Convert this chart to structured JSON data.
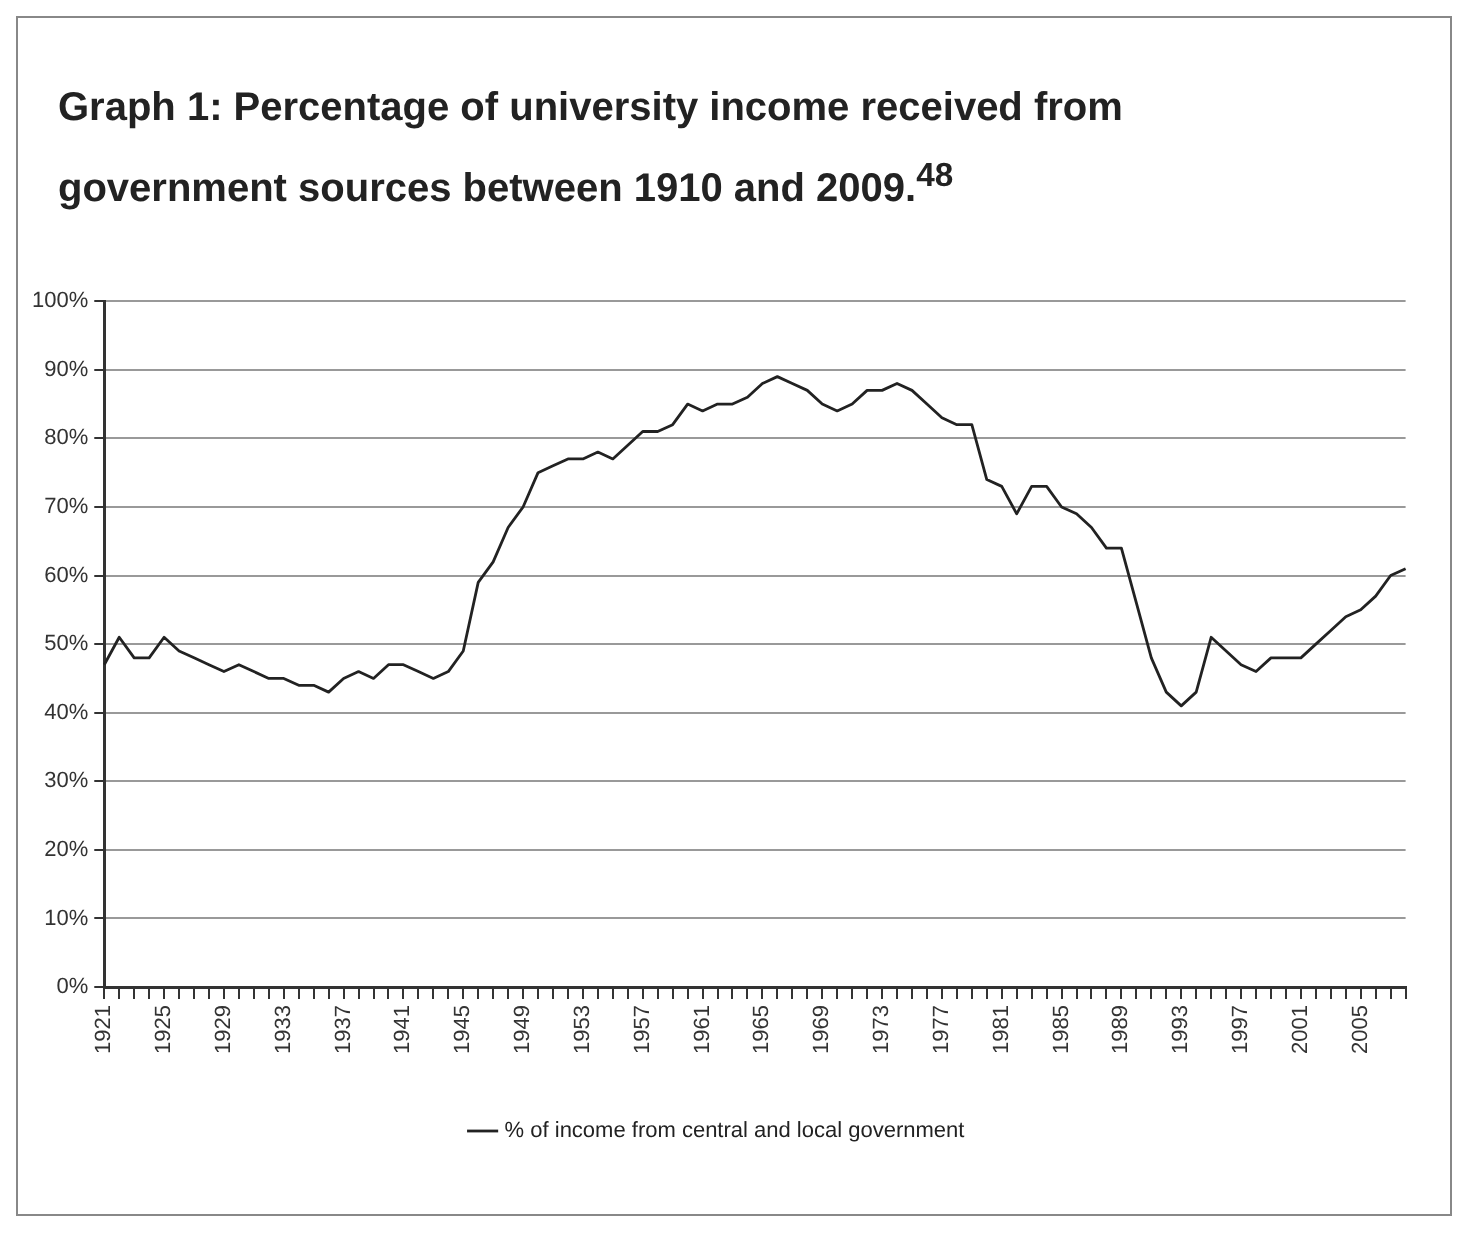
{
  "chart_data": {
    "type": "line",
    "title": "Graph 1: Percentage of university income received from government sources between 1910 and 2009.$^{48}$",
    "categories": [
      "1921",
      null,
      null,
      null,
      "1925",
      null,
      null,
      null,
      "1929",
      null,
      null,
      null,
      "1933",
      null,
      null,
      null,
      "1937",
      null,
      null,
      null,
      "1941",
      null,
      null,
      null,
      "1945",
      null,
      null,
      null,
      "1949",
      null,
      null,
      null,
      "1953",
      null,
      null,
      null,
      "1957",
      null,
      null,
      null,
      "1961",
      null,
      null,
      null,
      "1965",
      null,
      null,
      null,
      "1969",
      null,
      null,
      null,
      "1973",
      null,
      null,
      null,
      "1977",
      null,
      null,
      null,
      "1981",
      null,
      null,
      null,
      "1985",
      null,
      null,
      null,
      "1989",
      null,
      null,
      null,
      "1993",
      null,
      null,
      null,
      "1997",
      null,
      null,
      null,
      "2001",
      null,
      null,
      null,
      "2005",
      null,
      null,
      null
    ],
    "series": [
      {
        "name": "% of income from central and local government",
        "color": "#222222",
        "values": [
          47,
          51,
          48,
          48,
          51,
          49,
          48,
          47,
          46,
          47,
          46,
          45,
          45,
          44,
          44,
          43,
          45,
          46,
          45,
          47,
          47,
          46,
          45,
          46,
          49,
          59,
          62,
          67,
          70,
          75,
          76,
          77,
          77,
          78,
          77,
          79,
          81,
          81,
          82,
          85,
          84,
          85,
          85,
          86,
          88,
          89,
          88,
          87,
          85,
          84,
          85,
          87,
          87,
          88,
          87,
          85,
          83,
          82,
          82,
          74,
          73,
          69,
          73,
          73,
          70,
          69,
          67,
          64,
          64,
          56,
          48,
          43,
          41,
          43,
          51,
          49,
          47,
          46,
          48,
          48,
          48,
          50,
          52,
          54,
          55,
          57,
          60,
          61
        ]
      }
    ],
    "ylim": [
      0,
      100
    ],
    "yticks": [
      {
        "value": 0,
        "label": "0%"
      },
      {
        "value": 10,
        "label": "10%"
      },
      {
        "value": 20,
        "label": "20%"
      },
      {
        "value": 30,
        "label": "30%"
      },
      {
        "value": 40,
        "label": "40%"
      },
      {
        "value": 50,
        "label": "50%"
      },
      {
        "value": 60,
        "label": "60%"
      },
      {
        "value": 70,
        "label": "70%"
      },
      {
        "value": 80,
        "label": "80%"
      },
      {
        "value": 90,
        "label": "90%"
      },
      {
        "value": 100,
        "label": "100%"
      }
    ],
    "grid": "y",
    "legend": "bottom",
    "marker": "none",
    "line_style": "solid"
  }
}
